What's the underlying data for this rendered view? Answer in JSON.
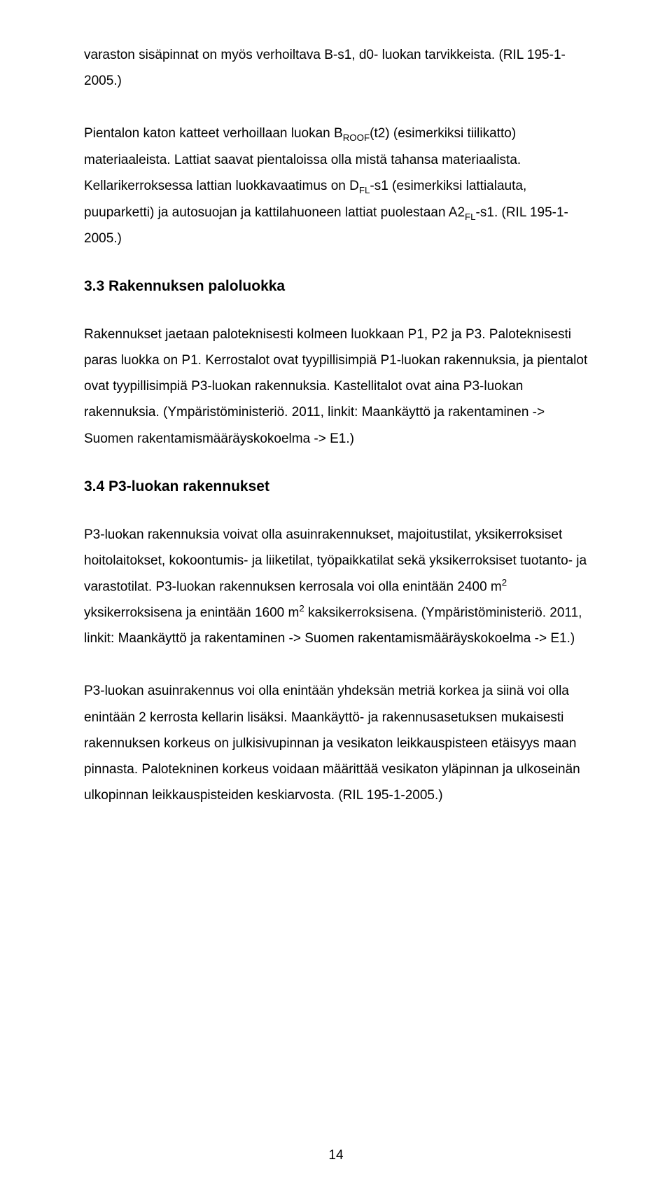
{
  "paragraphs": {
    "p1_a": "varaston sisäpinnat on myös verhoiltava B-s1, d0- luokan tarvikkeista. (RIL 195-1-2005.)",
    "p2_a": "Pientalon katon katteet verhoillaan luokan B",
    "p2_sub1": "ROOF",
    "p2_b": "(t2) (esimerkiksi tiilikatto) materiaaleista. Lattiat saavat pientaloissa olla mistä tahansa materiaalista. Kellarikerroksessa lattian luokkavaatimus on D",
    "p2_sub2": "FL",
    "p2_c": "-s1 (esimerkiksi lattialauta, puuparketti) ja autosuojan ja kattilahuoneen lattiat puolestaan A2",
    "p2_sub3": "FL",
    "p2_d": "-s1. (RIL 195-1-2005.)",
    "p3": "Rakennukset jaetaan paloteknisesti kolmeen luokkaan P1, P2 ja P3. Paloteknisesti paras luokka on P1. Kerrostalot ovat tyypillisimpiä P1-luokan rakennuksia, ja pientalot ovat tyypillisimpiä P3-luokan rakennuksia. Kastellitalot ovat aina P3-luokan rakennuksia. (Ympäristöministeriö. 2011, linkit: Maankäyttö ja rakentaminen -> Suomen rakentamismääräyskokoelma -> E1.)",
    "p4_a": "P3-luokan rakennuksia voivat olla asuinrakennukset, majoitustilat, yksikerroksiset hoitolaitokset, kokoontumis- ja liiketilat, työpaikkatilat sekä yksikerroksiset tuotanto- ja varastotilat. P3-luokan rakennuksen kerrosala voi olla enintään 2400 m",
    "p4_sup1": "2",
    "p4_b": " yksikerroksisena ja enintään 1600 m",
    "p4_sup2": "2",
    "p4_c": " kaksikerroksisena. (Ympäristöministeriö. 2011, linkit: Maankäyttö ja rakentaminen -> Suomen rakentamismääräyskokoelma -> E1.)",
    "p5": "P3-luokan asuinrakennus voi olla enintään yhdeksän metriä korkea ja siinä voi olla enintään 2 kerrosta kellarin lisäksi. Maankäyttö- ja rakennusasetuksen mukaisesti rakennuksen korkeus on julkisivupinnan ja vesikaton leikkauspisteen etäisyys maan pinnasta. Palotekninen korkeus voidaan määrittää vesikaton yläpinnan ja ulkoseinän ulkopinnan leikkauspisteiden keskiarvosta. (RIL 195-1-2005.)"
  },
  "headings": {
    "h33": "3.3 Rakennuksen paloluokka",
    "h34": "3.4 P3-luokan rakennukset"
  },
  "page_number": "14",
  "style": {
    "background": "#ffffff",
    "text_color": "#000000",
    "body_fontsize": 19,
    "heading_fontsize": 21,
    "line_height": 1.95
  }
}
